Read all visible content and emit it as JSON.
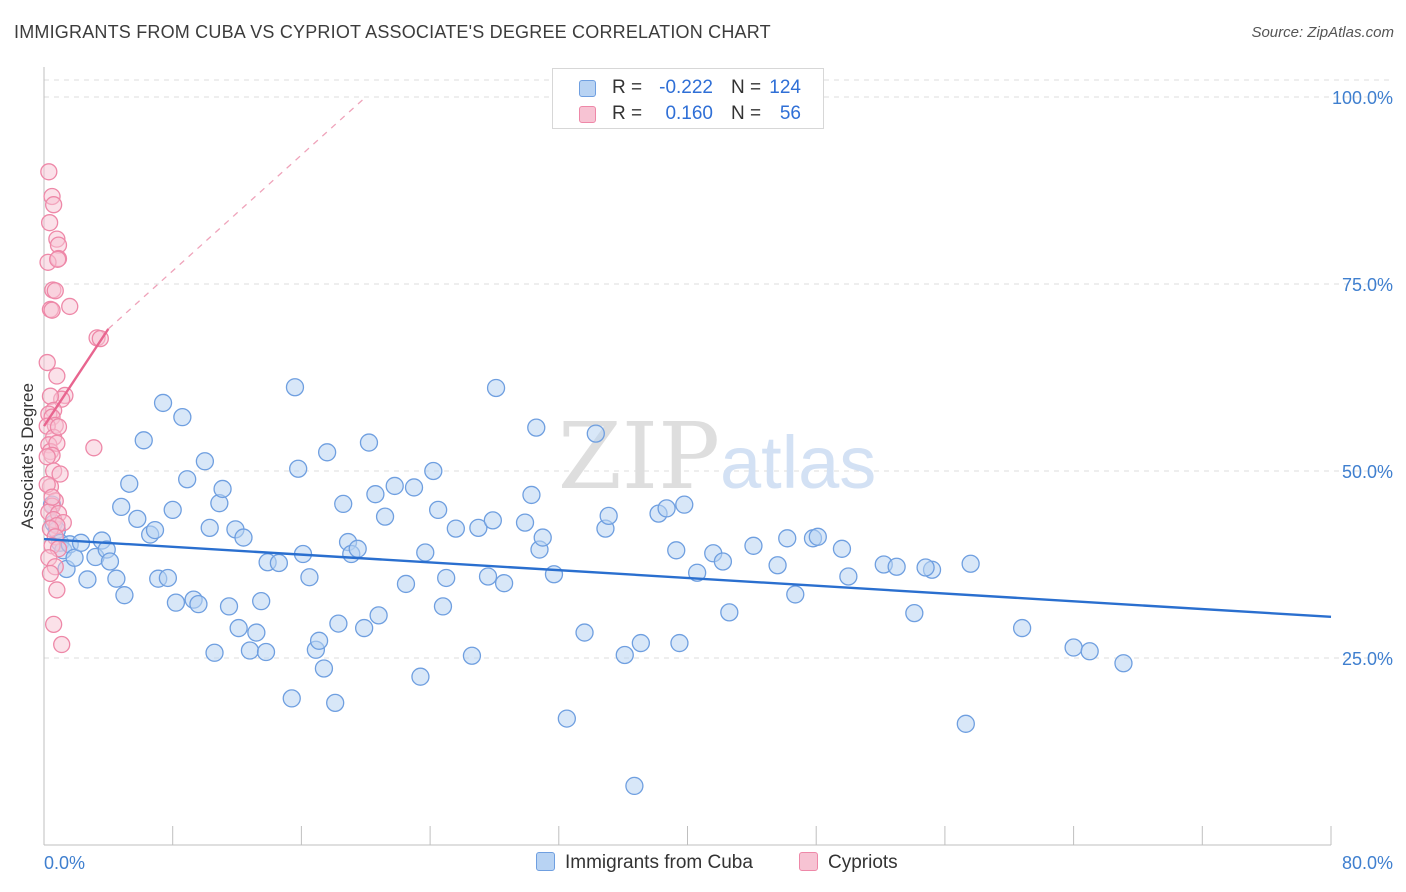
{
  "title": "IMMIGRANTS FROM CUBA VS CYPRIOT ASSOCIATE'S DEGREE CORRELATION CHART",
  "source": "Source: ZipAtlas.com",
  "watermark": {
    "zip": "ZIP",
    "atlas": "atlas"
  },
  "legend_top": {
    "rows": [
      {
        "r_label": "R =",
        "r_value": "-0.222",
        "n_label": "N =",
        "n_value": "124"
      },
      {
        "r_label": "R =",
        "r_value": "0.160",
        "n_label": "N =",
        "n_value": "56"
      }
    ]
  },
  "legend_bottom": {
    "items": [
      {
        "label": "Immigrants from Cuba"
      },
      {
        "label": "Cypriots"
      }
    ]
  },
  "colors": {
    "blue_fill": "#b8d3f3",
    "blue_stroke": "#6f9fe0",
    "blue_line": "#2a6fcf",
    "pink_fill": "#f7c3d3",
    "pink_stroke": "#ee88a8",
    "pink_line": "#e8658f",
    "tick_text": "#3f7fcf",
    "grid": "#dcdcdc"
  },
  "chart_data": {
    "type": "scatter",
    "title": "IMMIGRANTS FROM CUBA VS CYPRIOT ASSOCIATE'S DEGREE CORRELATION CHART",
    "xlabel": "",
    "ylabel": "Associate's Degree",
    "xlim": [
      0,
      80
    ],
    "ylim": [
      0,
      100
    ],
    "x_tick_labels": [
      "0.0%",
      "80.0%"
    ],
    "y_ticks": [
      25,
      50,
      75,
      100
    ],
    "y_tick_labels": [
      "25.0%",
      "50.0%",
      "75.0%",
      "100.0%"
    ],
    "grid": true,
    "legend_position": "top-center",
    "series": [
      {
        "name": "Immigrants from Cuba",
        "color": "#6f9fe0",
        "trend": {
          "x": [
            0,
            80
          ],
          "y": [
            40.9,
            30.5
          ]
        },
        "points": [
          [
            0.5,
            45.5
          ],
          [
            0.6,
            43.0
          ],
          [
            0.8,
            42.1
          ],
          [
            1.0,
            40.4
          ],
          [
            1.2,
            39.4
          ],
          [
            1.4,
            36.9
          ],
          [
            1.6,
            40.2
          ],
          [
            1.9,
            38.4
          ],
          [
            2.3,
            40.4
          ],
          [
            2.7,
            35.5
          ],
          [
            3.2,
            38.5
          ],
          [
            3.6,
            40.7
          ],
          [
            3.9,
            39.5
          ],
          [
            4.1,
            37.9
          ],
          [
            4.5,
            35.6
          ],
          [
            4.8,
            45.2
          ],
          [
            5.0,
            33.4
          ],
          [
            5.3,
            48.3
          ],
          [
            5.8,
            43.6
          ],
          [
            6.2,
            54.1
          ],
          [
            6.6,
            41.5
          ],
          [
            6.9,
            42.1
          ],
          [
            7.1,
            35.6
          ],
          [
            7.4,
            59.1
          ],
          [
            7.7,
            35.7
          ],
          [
            8.0,
            44.8
          ],
          [
            8.2,
            32.4
          ],
          [
            8.6,
            57.2
          ],
          [
            8.9,
            48.9
          ],
          [
            9.3,
            32.8
          ],
          [
            9.6,
            32.2
          ],
          [
            10.0,
            51.3
          ],
          [
            10.3,
            42.4
          ],
          [
            10.6,
            25.7
          ],
          [
            10.9,
            45.7
          ],
          [
            11.1,
            47.6
          ],
          [
            11.5,
            31.9
          ],
          [
            11.9,
            42.2
          ],
          [
            12.1,
            29.0
          ],
          [
            12.4,
            41.1
          ],
          [
            12.8,
            26.0
          ],
          [
            13.2,
            28.4
          ],
          [
            13.5,
            32.6
          ],
          [
            13.8,
            25.8
          ],
          [
            13.9,
            37.8
          ],
          [
            14.6,
            37.7
          ],
          [
            15.4,
            19.6
          ],
          [
            15.6,
            61.2
          ],
          [
            15.8,
            50.3
          ],
          [
            16.1,
            38.9
          ],
          [
            16.5,
            35.8
          ],
          [
            16.9,
            26.1
          ],
          [
            17.1,
            27.3
          ],
          [
            17.4,
            23.6
          ],
          [
            17.6,
            52.5
          ],
          [
            18.1,
            19.0
          ],
          [
            18.3,
            29.6
          ],
          [
            18.6,
            45.6
          ],
          [
            18.9,
            40.5
          ],
          [
            19.1,
            38.9
          ],
          [
            19.5,
            39.6
          ],
          [
            19.9,
            29.0
          ],
          [
            20.2,
            53.8
          ],
          [
            20.6,
            46.9
          ],
          [
            20.8,
            30.7
          ],
          [
            21.2,
            43.9
          ],
          [
            21.8,
            48.0
          ],
          [
            22.5,
            34.9
          ],
          [
            23.0,
            47.8
          ],
          [
            23.4,
            22.5
          ],
          [
            23.7,
            39.1
          ],
          [
            24.2,
            50.0
          ],
          [
            24.5,
            44.8
          ],
          [
            24.8,
            31.9
          ],
          [
            25.0,
            35.7
          ],
          [
            25.6,
            42.3
          ],
          [
            26.6,
            25.3
          ],
          [
            27.0,
            42.4
          ],
          [
            27.6,
            35.9
          ],
          [
            27.9,
            43.4
          ],
          [
            28.1,
            61.1
          ],
          [
            28.6,
            35.0
          ],
          [
            29.9,
            43.1
          ],
          [
            30.3,
            46.8
          ],
          [
            30.6,
            55.8
          ],
          [
            30.8,
            39.5
          ],
          [
            31.0,
            41.1
          ],
          [
            31.7,
            36.2
          ],
          [
            32.5,
            16.9
          ],
          [
            33.6,
            28.4
          ],
          [
            34.3,
            55.0
          ],
          [
            34.9,
            42.3
          ],
          [
            35.1,
            44.0
          ],
          [
            36.1,
            25.4
          ],
          [
            36.7,
            7.9
          ],
          [
            37.1,
            27.0
          ],
          [
            38.2,
            44.3
          ],
          [
            38.7,
            45.0
          ],
          [
            39.3,
            39.4
          ],
          [
            39.5,
            27.0
          ],
          [
            39.8,
            45.5
          ],
          [
            40.6,
            36.4
          ],
          [
            41.6,
            39.0
          ],
          [
            42.2,
            37.9
          ],
          [
            42.6,
            31.1
          ],
          [
            44.1,
            40.0
          ],
          [
            45.6,
            37.4
          ],
          [
            46.2,
            41.0
          ],
          [
            46.7,
            33.5
          ],
          [
            47.8,
            41.0
          ],
          [
            48.1,
            41.2
          ],
          [
            49.6,
            39.6
          ],
          [
            50.0,
            35.9
          ],
          [
            52.2,
            37.5
          ],
          [
            53.0,
            37.2
          ],
          [
            54.1,
            31.0
          ],
          [
            55.2,
            36.8
          ],
          [
            57.3,
            16.2
          ],
          [
            57.6,
            37.6
          ],
          [
            60.8,
            29.0
          ],
          [
            64.0,
            26.4
          ],
          [
            65.0,
            25.9
          ],
          [
            67.1,
            24.3
          ],
          [
            54.8,
            37.1
          ]
        ]
      },
      {
        "name": "Cypriots",
        "color": "#ee88a8",
        "trend": {
          "x": [
            0,
            4
          ],
          "y": [
            56.0,
            69.0
          ]
        },
        "trend_extension": {
          "x": [
            4,
            20
          ],
          "y": [
            69.0,
            100.0
          ]
        },
        "points": [
          [
            0.3,
            90.0
          ],
          [
            0.5,
            86.7
          ],
          [
            0.6,
            85.6
          ],
          [
            0.35,
            83.2
          ],
          [
            0.8,
            81.0
          ],
          [
            0.9,
            80.2
          ],
          [
            0.9,
            78.4
          ],
          [
            0.25,
            77.9
          ],
          [
            0.85,
            78.3
          ],
          [
            0.55,
            74.2
          ],
          [
            0.7,
            74.1
          ],
          [
            0.4,
            71.6
          ],
          [
            0.5,
            71.5
          ],
          [
            1.6,
            72.0
          ],
          [
            3.3,
            67.8
          ],
          [
            3.5,
            67.7
          ],
          [
            0.2,
            64.5
          ],
          [
            0.8,
            62.7
          ],
          [
            1.3,
            60.1
          ],
          [
            1.1,
            59.6
          ],
          [
            0.4,
            60.0
          ],
          [
            0.6,
            58.1
          ],
          [
            0.3,
            57.6
          ],
          [
            0.5,
            57.2
          ],
          [
            0.7,
            56.1
          ],
          [
            0.2,
            56.0
          ],
          [
            0.6,
            54.5
          ],
          [
            0.9,
            55.9
          ],
          [
            0.3,
            53.5
          ],
          [
            0.4,
            52.6
          ],
          [
            0.8,
            53.7
          ],
          [
            0.5,
            52.1
          ],
          [
            0.2,
            51.9
          ],
          [
            3.1,
            53.1
          ],
          [
            0.6,
            50.0
          ],
          [
            1.0,
            49.6
          ],
          [
            0.4,
            47.9
          ],
          [
            0.2,
            48.2
          ],
          [
            0.7,
            46.0
          ],
          [
            0.5,
            45.3
          ],
          [
            0.3,
            44.5
          ],
          [
            0.9,
            44.3
          ],
          [
            0.6,
            43.5
          ],
          [
            1.2,
            43.1
          ],
          [
            0.8,
            42.7
          ],
          [
            0.4,
            42.3
          ],
          [
            0.7,
            41.2
          ],
          [
            0.5,
            40.0
          ],
          [
            0.9,
            39.6
          ],
          [
            0.3,
            38.4
          ],
          [
            0.7,
            37.2
          ],
          [
            0.6,
            29.5
          ],
          [
            1.1,
            26.8
          ],
          [
            0.4,
            36.3
          ],
          [
            0.8,
            34.1
          ],
          [
            0.5,
            46.5
          ]
        ]
      }
    ]
  }
}
